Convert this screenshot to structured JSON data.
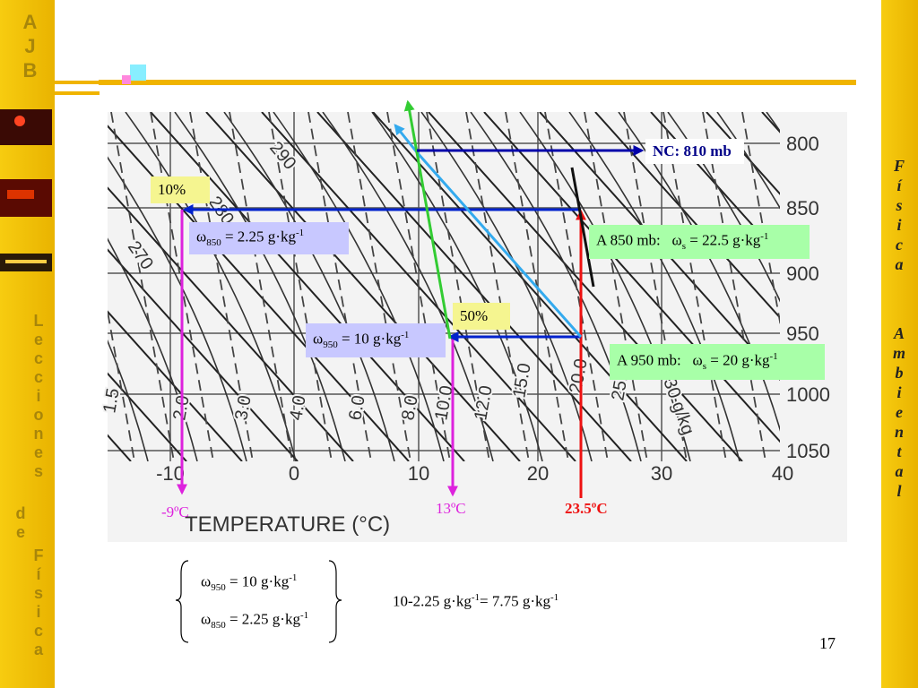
{
  "sidebar_left": {
    "initials": "AJB",
    "line_1": "Lecciones",
    "line_2": "de",
    "line_3": "Física"
  },
  "sidebar_right": {
    "line_1": "Física",
    "line_2": "Ambiental"
  },
  "diagram": {
    "pressure_labels": [
      "800",
      "850",
      "900",
      "950",
      "1000",
      "1050"
    ],
    "temperature_labels": [
      "-10",
      "0",
      "10",
      "20",
      "30",
      "40"
    ],
    "axis_title": "TEMPERATURE (°C)",
    "curve_labels": [
      "290",
      "280",
      "270",
      "1.5",
      "2.0",
      "3.0",
      "4.0",
      "6.0",
      "8.0",
      "10.0",
      "12.0",
      "15.0",
      "20.0",
      "25.0",
      "30 g/kg"
    ]
  },
  "annotations": {
    "nc": {
      "text": "NC: 810 mb"
    },
    "rh10": {
      "text": "10%"
    },
    "w850": {
      "text": "ω",
      "sub": "850",
      "text_2": " = 2.25 g·kg",
      "sup": "-1"
    },
    "ws850": {
      "text": "A 850 mb:   ω",
      "sub": "s",
      "text_2": " = 22.5 g·kg",
      "sup": "-1"
    },
    "rh50": {
      "text": "50%"
    },
    "w950": {
      "text": "ω",
      "sub": "950",
      "text_2": " = 10 g·kg",
      "sup": "-1"
    },
    "ws950": {
      "text": "A 950 mb:   ω",
      "sub": "s",
      "text_2": " = 20 g·kg",
      "sup": "-1"
    },
    "td850": {
      "text": "-9ºC"
    },
    "td950": {
      "text": "13ºC"
    },
    "t": {
      "text": "23.5ºC"
    }
  },
  "summary": {
    "w950": {
      "text": "ω",
      "sub": "950",
      "text_2": " = 10 g·kg",
      "sup": "-1"
    },
    "w850": {
      "text": "ω",
      "sub": "850",
      "text_2": " = 2.25 g·kg",
      "sup": "-1"
    },
    "result": {
      "text": "10-2.25 g·kg",
      "sup": "-1",
      "text_2": "= 7.75 g·kg",
      "sup_2": "-1"
    }
  },
  "page_number": "17"
}
